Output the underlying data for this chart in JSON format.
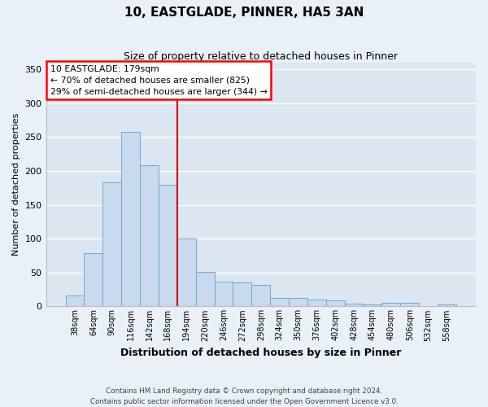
{
  "title": "10, EASTGLADE, PINNER, HA5 3AN",
  "subtitle": "Size of property relative to detached houses in Pinner",
  "xlabel": "Distribution of detached houses by size in Pinner",
  "ylabel": "Number of detached properties",
  "categories": [
    "38sqm",
    "64sqm",
    "90sqm",
    "116sqm",
    "142sqm",
    "168sqm",
    "194sqm",
    "220sqm",
    "246sqm",
    "272sqm",
    "298sqm",
    "324sqm",
    "350sqm",
    "376sqm",
    "402sqm",
    "428sqm",
    "454sqm",
    "480sqm",
    "506sqm",
    "532sqm",
    "558sqm"
  ],
  "values": [
    16,
    78,
    183,
    257,
    208,
    179,
    100,
    51,
    36,
    35,
    32,
    13,
    13,
    10,
    9,
    4,
    3,
    5,
    5,
    0,
    3
  ],
  "bar_color": "#c9d9ee",
  "bar_edge_color": "#6aaad4",
  "plot_bg_color": "#dce6f1",
  "fig_bg_color": "#eaf0f8",
  "grid_color": "#ffffff",
  "vline_color": "#cc0000",
  "annotation_line1": "10 EASTGLADE: 179sqm",
  "annotation_line2": "← 70% of detached houses are smaller (825)",
  "annotation_line3": "29% of semi-detached houses are larger (344) →",
  "ylim": [
    0,
    360
  ],
  "yticks": [
    0,
    50,
    100,
    150,
    200,
    250,
    300,
    350
  ],
  "footer_line1": "Contains HM Land Registry data © Crown copyright and database right 2024.",
  "footer_line2": "Contains public sector information licensed under the Open Government Licence v3.0."
}
